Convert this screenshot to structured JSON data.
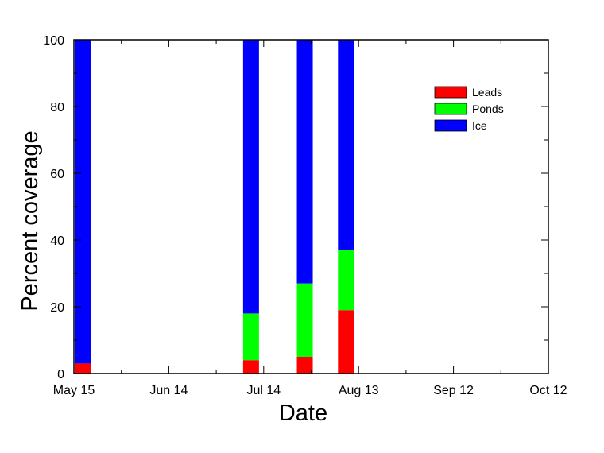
{
  "chart_data": {
    "type": "bar",
    "stacked": true,
    "x": [
      "May 18",
      "Jul 10",
      "Jul 27",
      "Aug 9"
    ],
    "series": [
      {
        "name": "Leads",
        "color": "#ff0000",
        "values": [
          3,
          4,
          5,
          19
        ]
      },
      {
        "name": "Ponds",
        "color": "#00ff00",
        "values": [
          0,
          14,
          22,
          18
        ]
      },
      {
        "name": "Ice",
        "color": "#0000ff",
        "values": [
          97,
          82,
          73,
          63
        ]
      }
    ],
    "xlabel": "Date",
    "ylabel": "Percent coverage",
    "ylim": [
      0,
      100
    ],
    "xlim": [
      "May 15",
      "Oct 12"
    ],
    "x_ticks": [
      "May 15",
      "Jun 14",
      "Jul 14",
      "Aug 13",
      "Sep 12",
      "Oct 12"
    ],
    "y_ticks": [
      0,
      20,
      40,
      60,
      80,
      100
    ],
    "grid": false,
    "legend_position": "top-right"
  }
}
